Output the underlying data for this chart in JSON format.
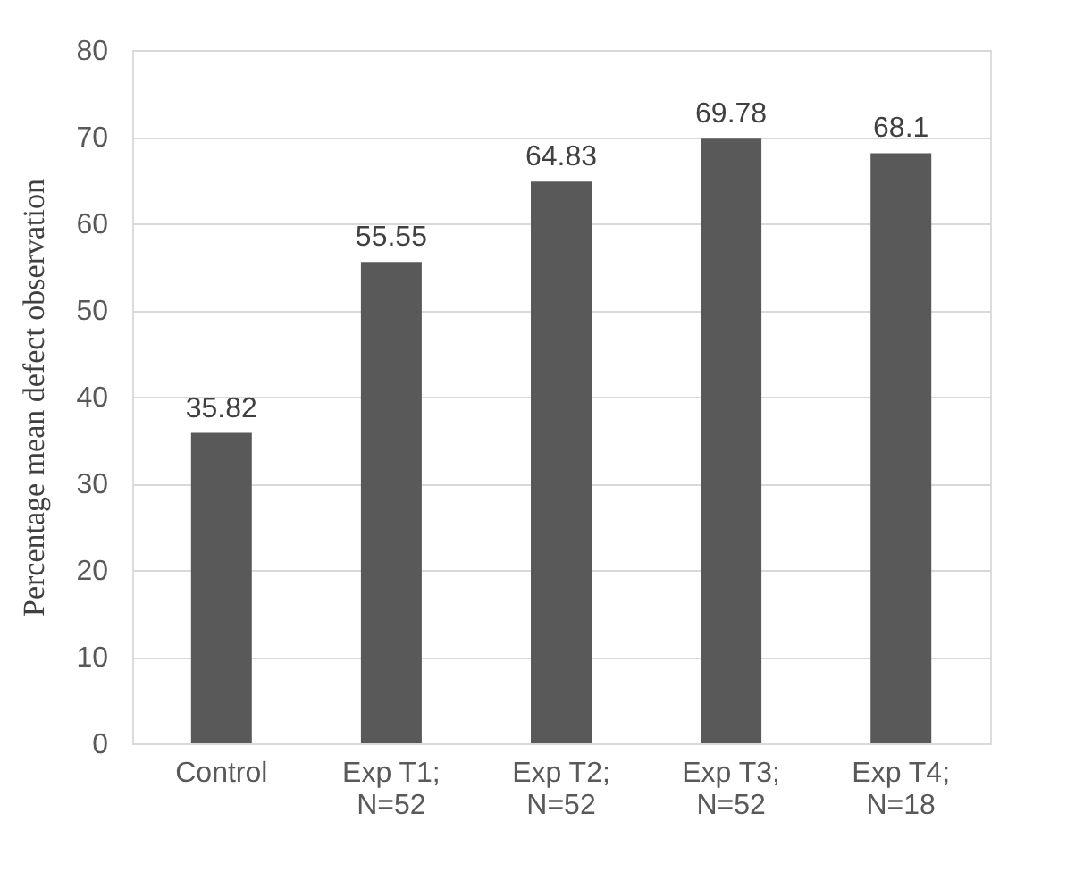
{
  "chart_data": {
    "type": "bar",
    "ylabel": "Percentage mean defect  observation",
    "categories": [
      "Control",
      "Exp T1; N=52",
      "Exp T2; N=52",
      "Exp T3; N=52",
      "Exp T4; N=18"
    ],
    "values": [
      35.82,
      55.55,
      64.83,
      69.78,
      68.1
    ],
    "color": "#595959",
    "ylim": [
      0,
      80
    ],
    "yticks": [
      0,
      10,
      20,
      30,
      40,
      50,
      60,
      70,
      80
    ],
    "grid": "y",
    "data_labels": true
  }
}
